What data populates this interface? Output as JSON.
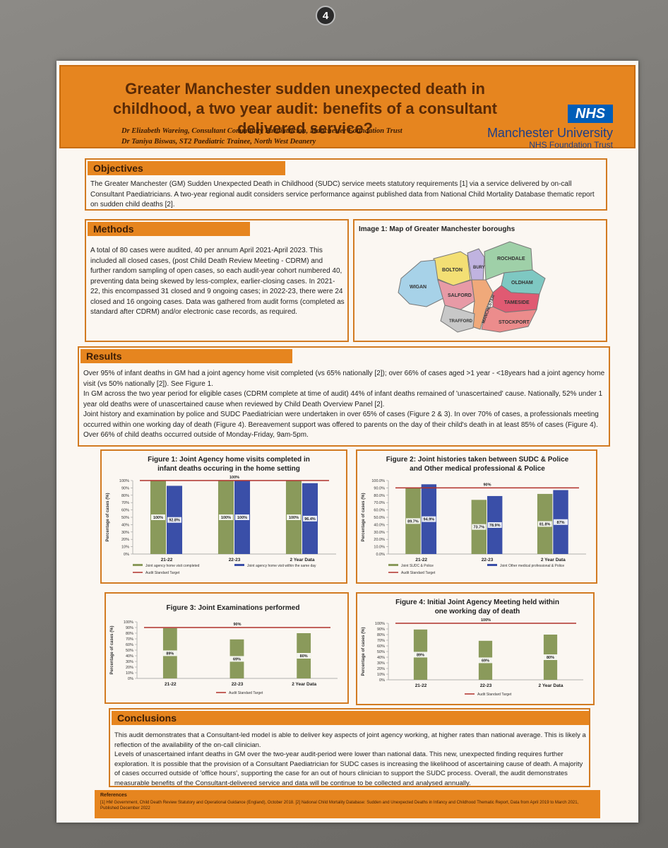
{
  "pin_label": "4",
  "header": {
    "title": "Greater Manchester sudden unexpected death in childhood, a two year audit: benefits of a consultant delivered service?",
    "authors": [
      "Dr Elizabeth Wareing, Consultant Community Paediatrician, Manchester Foundation Trust",
      "Dr Taniya Biswas, ST2 Paediatric Trainee, North West Deanery"
    ],
    "nhs_logo": "NHS",
    "org_name": "Manchester University",
    "org_trust": "NHS Foundation Trust"
  },
  "objectives": {
    "heading": "Objectives",
    "text": "The Greater Manchester (GM) Sudden Unexpected Death in Childhood (SUDC) service meets statutory requirements [1] via a service delivered by on-call Consultant Paediatricians. A two-year regional audit considers service performance against published data from National Child Mortality Database thematic report on sudden child deaths [2]."
  },
  "methods": {
    "heading": "Methods",
    "text": "A total of 80 cases were audited, 40 per annum April 2021-April 2023. This included all closed cases, (post Child Death Review Meeting - CDRM) and further random sampling of open cases, so each audit-year cohort numbered 40, preventing data being skewed by less-complex, earlier-closing cases. In 2021-22, this encompassed 31 closed and 9 ongoing cases; in 2022-23, there were 24 closed and 16 ongoing cases. Data was gathered from audit forms (completed as standard after CDRM) and/or electronic case records, as required."
  },
  "map": {
    "caption": "Image 1: Map of Greater Manchester boroughs",
    "boroughs": [
      "BOLTON",
      "BURY",
      "ROCHDALE",
      "OLDHAM",
      "WIGAN",
      "SALFORD",
      "TAMESIDE",
      "TRAFFORD",
      "MANCHESTER",
      "STOCKPORT"
    ]
  },
  "results": {
    "heading": "Results",
    "paragraphs": [
      "Over 95% of infant deaths in GM had a joint agency home visit completed (vs 65% nationally [2]); over 66% of cases aged >1 year - <18years had a joint agency home visit (vs 50% nationally [2]). See Figure 1.",
      "In GM across the two year period for eligible cases (CDRM complete at time of audit) 44% of infant deaths remained of 'unascertained' cause. Nationally, 52% under 1 year old deaths were of unascertained cause when reviewed by Child Death Overview Panel [2].",
      "Joint history and examination by police and SUDC Paediatrician were undertaken in over 65% of cases (Figure 2 & 3). In over 70% of cases, a professionals meeting occurred within one working day of death (Figure 4). Bereavement support was offered to parents on the day of their child's death in at least 85% of cases (Figure 4). Over 66% of child deaths occurred outside of Monday-Friday, 9am-5pm."
    ]
  },
  "chart_data": [
    {
      "id": "fig1",
      "type": "bar",
      "title": "Figure 1: Joint Agency home visits completed in infant deaths occuring in the home setting",
      "ylabel": "Percentage of cases (%)",
      "ylim": [
        0,
        100
      ],
      "yticks": [
        "0%",
        "10%",
        "20%",
        "30%",
        "40%",
        "50%",
        "60%",
        "70%",
        "80%",
        "90%",
        "100%"
      ],
      "categories": [
        "21-22",
        "22-23",
        "2 Year Data"
      ],
      "series": [
        {
          "name": "Joint agency home visit completed",
          "color": "#8a9a5b",
          "values": [
            100,
            100,
            100
          ],
          "labels": [
            "100%",
            "100%",
            "100%"
          ]
        },
        {
          "name": "Joint agency home visit within the same day",
          "color": "#3a4fa8",
          "values": [
            92.8,
            100,
            96.4
          ],
          "labels": [
            "92.8%",
            "100%",
            "96.4%"
          ]
        }
      ],
      "target": {
        "name": "Audit Standard Target",
        "value": 100,
        "label": "100%",
        "color": "#b0302a"
      }
    },
    {
      "id": "fig2",
      "type": "bar",
      "title": "Figure 2: Joint histories taken between SUDC & Police and Other medical professional & Police",
      "ylabel": "Percentage of cases (%)",
      "ylim": [
        0,
        100
      ],
      "yticks": [
        "0.0%",
        "10.0%",
        "20.0%",
        "30.0%",
        "40.0%",
        "50.0%",
        "60.0%",
        "70.0%",
        "80.0%",
        "90.0%",
        "100.0%"
      ],
      "categories": [
        "21-22",
        "22-23",
        "2 Year Data"
      ],
      "series": [
        {
          "name": "Joint SUDC & Police",
          "color": "#8a9a5b",
          "values": [
            89.7,
            73.7,
            81.8
          ],
          "labels": [
            "89.7%",
            "73.7%",
            "81.8%"
          ]
        },
        {
          "name": "Joint Other medical professional & Police",
          "color": "#3a4fa8",
          "values": [
            94.9,
            78.9,
            87
          ],
          "labels": [
            "94.9%",
            "78.9%",
            "87%"
          ]
        }
      ],
      "target": {
        "name": "Audit Standard Target",
        "value": 90,
        "label": "90%",
        "color": "#b0302a"
      }
    },
    {
      "id": "fig3",
      "type": "bar",
      "title": "Figure 3: Joint Examinations performed",
      "ylabel": "Percentage of cases (%)",
      "ylim": [
        0,
        100
      ],
      "yticks": [
        "0%",
        "10%",
        "20%",
        "30%",
        "40%",
        "50%",
        "60%",
        "70%",
        "80%",
        "90%",
        "100%"
      ],
      "categories": [
        "21-22",
        "22-23",
        "2 Year Data"
      ],
      "series": [
        {
          "name": "",
          "color": "#8a9a5b",
          "values": [
            89,
            69,
            80
          ],
          "labels": [
            "89%",
            "69%",
            "80%"
          ]
        }
      ],
      "target": {
        "name": "Audit Standard Target",
        "value": 90,
        "label": "90%",
        "color": "#b0302a"
      }
    },
    {
      "id": "fig4",
      "type": "bar",
      "title": "Figure 4: Initial Joint Agency Meeting held within one working day of death",
      "ylabel": "Percentage of cases (%)",
      "ylim": [
        0,
        100
      ],
      "yticks": [
        "0%",
        "10%",
        "20%",
        "30%",
        "40%",
        "50%",
        "60%",
        "70%",
        "80%",
        "90%",
        "100%"
      ],
      "categories": [
        "21-22",
        "22-23",
        "2 Year Data"
      ],
      "series": [
        {
          "name": "",
          "color": "#8a9a5b",
          "values": [
            89,
            69,
            80
          ],
          "labels": [
            "89%",
            "69%",
            "80%"
          ]
        }
      ],
      "target": {
        "name": "Audit Standard Target",
        "value": 100,
        "label": "100%",
        "color": "#b0302a"
      }
    }
  ],
  "conclusions": {
    "heading": "Conclusions",
    "paragraphs": [
      "This audit demonstrates that a Consultant-led model is able to deliver key aspects of joint agency working, at higher rates than national average. This is likely a reflection of the availability of the on-call clinician.",
      "Levels of unascertained infant deaths in GM over the two-year audit-period were lower than national data. This new, unexpected finding requires further exploration. It is possible that the provision of a Consultant Paediatrician for SUDC cases is increasing the likelihood of ascertaining cause of death. A majority of cases occurred outside of 'office hours', supporting the case for an out of hours clinician to support the SUDC process. Overall, the audit demonstrates measurable benefits of the Consultant-delivered service and data will be continue to be collected and analysed annually."
    ]
  },
  "references": {
    "heading": "References",
    "text": "[1] HM Government, Child Death Review Statutory and Operational Guidance (England), October 2018. [2] National Child Mortality Database: Sudden and Unexpected Deaths in Infancy and Childhood Thematic Report, Data from April 2019 to March 2021, Published December 2022"
  },
  "colors": {
    "accent": "#e6851f",
    "green_bar": "#8a9a5b",
    "blue_bar": "#3a4fa8",
    "target_line": "#b0302a",
    "nhs_blue": "#005eb8"
  }
}
